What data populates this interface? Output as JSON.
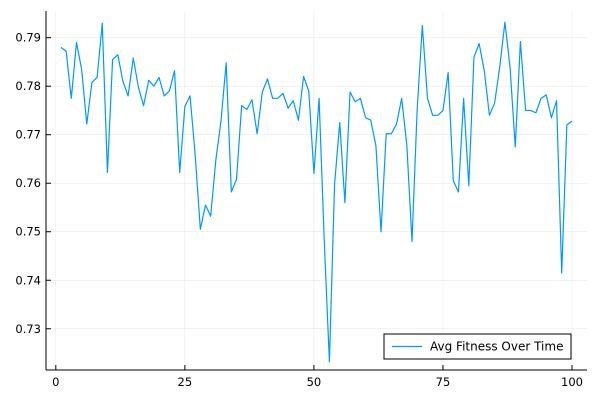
{
  "chart_data": {
    "type": "line",
    "title": "",
    "xlabel": "",
    "ylabel": "",
    "xlim": [
      -1.9,
      102.9
    ],
    "ylim": [
      0.7215,
      0.7955
    ],
    "xticks": [
      0,
      25,
      50,
      75,
      100
    ],
    "xtick_labels": [
      "0",
      "25",
      "50",
      "75",
      "100"
    ],
    "yticks": [
      0.73,
      0.74,
      0.75,
      0.76,
      0.77,
      0.78,
      0.79
    ],
    "ytick_labels": [
      "0.73",
      "0.74",
      "0.75",
      "0.76",
      "0.77",
      "0.78",
      "0.79"
    ],
    "grid": true,
    "legend": {
      "position": "bottom-right",
      "entries": [
        "Avg Fitness Over Time"
      ]
    },
    "series": [
      {
        "name": "Avg Fitness Over Time",
        "color": "#009AFA",
        "x": [
          1,
          2,
          3,
          4,
          5,
          6,
          7,
          8,
          9,
          10,
          11,
          12,
          13,
          14,
          15,
          16,
          17,
          18,
          19,
          20,
          21,
          22,
          23,
          24,
          25,
          26,
          27,
          28,
          29,
          30,
          31,
          32,
          33,
          34,
          35,
          36,
          37,
          38,
          39,
          40,
          41,
          42,
          43,
          44,
          45,
          46,
          47,
          48,
          49,
          50,
          51,
          52,
          53,
          54,
          55,
          56,
          57,
          58,
          59,
          60,
          61,
          62,
          63,
          64,
          65,
          66,
          67,
          68,
          69,
          70,
          71,
          72,
          73,
          74,
          75,
          76,
          77,
          78,
          79,
          80,
          81,
          82,
          83,
          84,
          85,
          86,
          87,
          88,
          89,
          90,
          91,
          92,
          93,
          94,
          95,
          96,
          97,
          98,
          99,
          100
        ],
        "values": [
          0.788,
          0.7872,
          0.7775,
          0.789,
          0.7835,
          0.7722,
          0.7808,
          0.7818,
          0.793,
          0.7622,
          0.7855,
          0.7865,
          0.781,
          0.778,
          0.7858,
          0.7798,
          0.776,
          0.7812,
          0.78,
          0.7818,
          0.778,
          0.779,
          0.7832,
          0.7622,
          0.7758,
          0.778,
          0.7658,
          0.7505,
          0.7555,
          0.7532,
          0.7648,
          0.7728,
          0.7848,
          0.7582,
          0.7608,
          0.776,
          0.7752,
          0.7772,
          0.7702,
          0.7788,
          0.7815,
          0.7775,
          0.7775,
          0.7785,
          0.7755,
          0.777,
          0.773,
          0.782,
          0.779,
          0.762,
          0.7775,
          0.7482,
          0.7232,
          0.7598,
          0.7725,
          0.756,
          0.7788,
          0.7768,
          0.7775,
          0.7735,
          0.773,
          0.7678,
          0.75,
          0.7702,
          0.7702,
          0.7722,
          0.7775,
          0.7678,
          0.748,
          0.7752,
          0.7925,
          0.7775,
          0.774,
          0.774,
          0.775,
          0.7828,
          0.7605,
          0.7582,
          0.7775,
          0.7595,
          0.786,
          0.7888,
          0.7832,
          0.774,
          0.7765,
          0.784,
          0.7932,
          0.7838,
          0.7675,
          0.7892,
          0.775,
          0.775,
          0.7745,
          0.7775,
          0.7782,
          0.7735,
          0.777,
          0.7415,
          0.772,
          0.7728
        ]
      }
    ]
  }
}
